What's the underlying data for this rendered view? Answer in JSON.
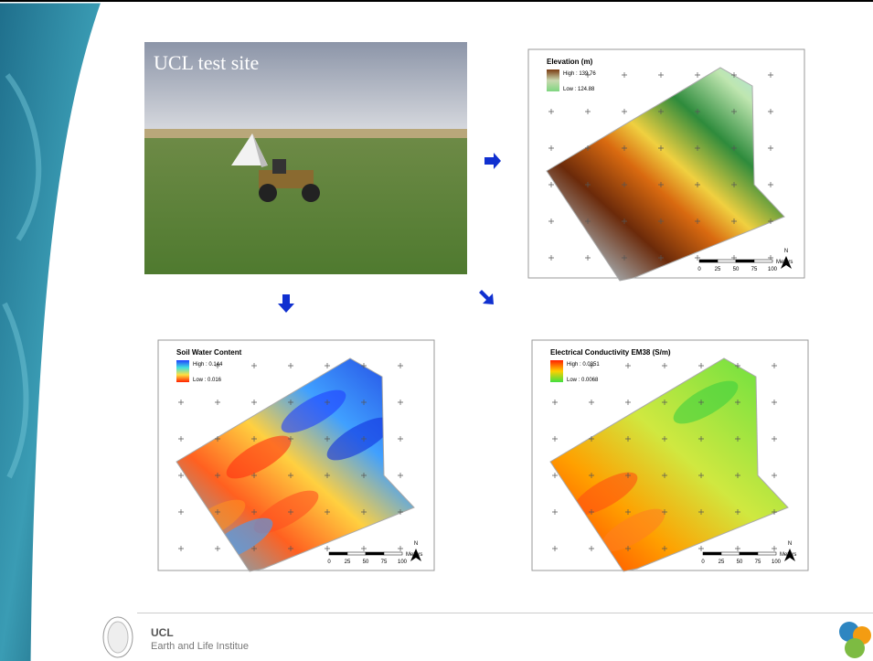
{
  "photo": {
    "caption": "UCL test site"
  },
  "maps": [
    {
      "title": "Elevation (m)",
      "legend_high": "High : 139.76",
      "legend_low": "Low : 124.88",
      "scale_unit": "Meters",
      "scale_ticks": [
        "0",
        "25",
        "50",
        "75",
        "100"
      ],
      "north": "N"
    },
    {
      "title": "Soil Water Content",
      "legend_high": "High : 0.144",
      "legend_low": "Low : 0.016",
      "scale_unit": "Meters",
      "scale_ticks": [
        "0",
        "25",
        "50",
        "75",
        "100"
      ],
      "north": "N"
    },
    {
      "title": "Electrical Conductivity EM38 (S/m)",
      "legend_high": "High : 0.0351",
      "legend_low": "Low : 0.0068",
      "scale_unit": "Meters",
      "scale_ticks": [
        "0",
        "25",
        "50",
        "75",
        "100"
      ],
      "north": "N"
    }
  ],
  "footer": {
    "org": "UCL",
    "institute": "Earth and Life Institue"
  }
}
